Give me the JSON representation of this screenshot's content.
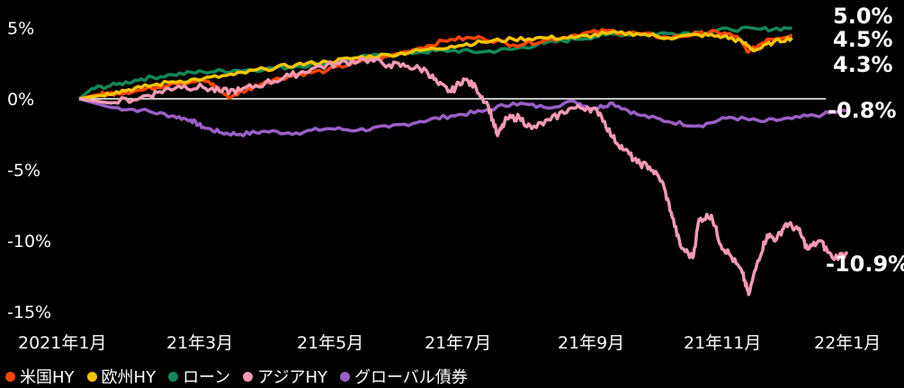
{
  "chart_data": {
    "type": "line",
    "title": "",
    "xlabel": "",
    "ylabel": "",
    "ylim": [
      -15,
      6
    ],
    "y_ticks": [
      5,
      0,
      -5,
      -10,
      -15
    ],
    "y_tick_labels": [
      "5%",
      "0%",
      "-5%",
      "-10%",
      "-15%"
    ],
    "x_tick_labels": [
      "2021年1月",
      "21年3月",
      "21年5月",
      "21年7月",
      "21年9月",
      "21年11月",
      "22年1月"
    ],
    "x_ticks": [
      0,
      2,
      4,
      6,
      8,
      10,
      12
    ],
    "xlim": [
      0,
      12
    ],
    "zero_line": true,
    "series": [
      {
        "name": "米国HY",
        "color": "#ff4500",
        "end_label": "4.5%",
        "points": [
          [
            0,
            0
          ],
          [
            0.3,
            0.3
          ],
          [
            0.6,
            0.4
          ],
          [
            1,
            0.6
          ],
          [
            1.5,
            1.1
          ],
          [
            2,
            1.3
          ],
          [
            2.2,
            0.9
          ],
          [
            2.4,
            0.1
          ],
          [
            2.7,
            0.6
          ],
          [
            3,
            1.2
          ],
          [
            3.5,
            1.7
          ],
          [
            4,
            2.0
          ],
          [
            4.5,
            2.6
          ],
          [
            5,
            3.0
          ],
          [
            5.5,
            3.6
          ],
          [
            6,
            4.2
          ],
          [
            6.5,
            4.3
          ],
          [
            7,
            3.8
          ],
          [
            7.5,
            4.1
          ],
          [
            8,
            4.5
          ],
          [
            8.5,
            4.8
          ],
          [
            9,
            4.6
          ],
          [
            9.5,
            4.3
          ],
          [
            10,
            4.6
          ],
          [
            10.3,
            4.7
          ],
          [
            10.6,
            4.4
          ],
          [
            10.8,
            3.3
          ],
          [
            11.1,
            4.2
          ],
          [
            11.5,
            4.5
          ]
        ]
      },
      {
        "name": "欧州HY",
        "color": "#f5c400",
        "end_label": "4.3%",
        "points": [
          [
            0,
            0
          ],
          [
            0.3,
            0.2
          ],
          [
            0.6,
            0.5
          ],
          [
            1,
            0.8
          ],
          [
            1.5,
            1.2
          ],
          [
            2,
            1.4
          ],
          [
            2.5,
            1.7
          ],
          [
            3,
            2.1
          ],
          [
            3.5,
            2.4
          ],
          [
            4,
            2.6
          ],
          [
            4.5,
            2.9
          ],
          [
            5,
            3.1
          ],
          [
            5.5,
            3.4
          ],
          [
            6,
            3.7
          ],
          [
            6.5,
            4.0
          ],
          [
            7,
            4.2
          ],
          [
            7.5,
            4.3
          ],
          [
            8,
            4.3
          ],
          [
            8.5,
            4.6
          ],
          [
            9,
            4.6
          ],
          [
            9.5,
            4.3
          ],
          [
            10,
            4.5
          ],
          [
            10.4,
            4.4
          ],
          [
            10.7,
            4.0
          ],
          [
            10.9,
            3.4
          ],
          [
            11.2,
            4.0
          ],
          [
            11.5,
            4.3
          ]
        ]
      },
      {
        "name": "ローン",
        "color": "#138857",
        "end_label": "5.0%",
        "points": [
          [
            0,
            0
          ],
          [
            0.2,
            0.7
          ],
          [
            0.6,
            1.0
          ],
          [
            1,
            1.4
          ],
          [
            1.5,
            1.7
          ],
          [
            2,
            1.9
          ],
          [
            2.5,
            2.0
          ],
          [
            3,
            2.1
          ],
          [
            3.5,
            2.3
          ],
          [
            4,
            2.5
          ],
          [
            4.5,
            2.9
          ],
          [
            5,
            3.1
          ],
          [
            5.5,
            3.3
          ],
          [
            6,
            3.4
          ],
          [
            6.5,
            3.3
          ],
          [
            7,
            3.5
          ],
          [
            7.5,
            3.9
          ],
          [
            8,
            4.2
          ],
          [
            8.5,
            4.5
          ],
          [
            9,
            4.6
          ],
          [
            9.5,
            4.6
          ],
          [
            10,
            4.7
          ],
          [
            10.5,
            4.9
          ],
          [
            11,
            4.9
          ],
          [
            11.5,
            5.0
          ]
        ]
      },
      {
        "name": "アジアHY",
        "color": "#f49ab4",
        "end_label": "-10.9%",
        "points": [
          [
            0,
            0
          ],
          [
            0.5,
            -0.3
          ],
          [
            1,
            0.1
          ],
          [
            1.3,
            0.5
          ],
          [
            1.6,
            0.9
          ],
          [
            2,
            0.8
          ],
          [
            2.3,
            0.5
          ],
          [
            2.6,
            0.6
          ],
          [
            3,
            1.1
          ],
          [
            3.4,
            1.6
          ],
          [
            3.8,
            2.2
          ],
          [
            4.2,
            2.5
          ],
          [
            4.6,
            2.8
          ],
          [
            5,
            2.4
          ],
          [
            5.3,
            2.3
          ],
          [
            5.6,
            2.0
          ],
          [
            5.8,
            1.0
          ],
          [
            6,
            0.5
          ],
          [
            6.2,
            1.4
          ],
          [
            6.4,
            0.8
          ],
          [
            6.6,
            -0.5
          ],
          [
            6.75,
            -2.6
          ],
          [
            6.9,
            -1.4
          ],
          [
            7.1,
            -1.3
          ],
          [
            7.3,
            -2.1
          ],
          [
            7.6,
            -1.5
          ],
          [
            7.9,
            -0.7
          ],
          [
            8.2,
            -0.6
          ],
          [
            8.4,
            -1.0
          ],
          [
            8.6,
            -2.7
          ],
          [
            8.8,
            -3.6
          ],
          [
            9,
            -4.5
          ],
          [
            9.2,
            -4.8
          ],
          [
            9.4,
            -5.8
          ],
          [
            9.55,
            -8.0
          ],
          [
            9.7,
            -10.4
          ],
          [
            9.9,
            -11.2
          ],
          [
            10.0,
            -8.5
          ],
          [
            10.2,
            -8.2
          ],
          [
            10.35,
            -10.3
          ],
          [
            10.5,
            -11.0
          ],
          [
            10.7,
            -12.3
          ],
          [
            10.8,
            -13.8
          ],
          [
            10.95,
            -11.4
          ],
          [
            11.1,
            -9.6
          ],
          [
            11.25,
            -9.9
          ],
          [
            11.4,
            -8.8
          ],
          [
            11.6,
            -9.2
          ],
          [
            11.75,
            -10.6
          ],
          [
            11.95,
            -10.0
          ],
          [
            12.15,
            -11.2
          ],
          [
            12.4,
            -10.9
          ]
        ]
      },
      {
        "name": "グローバル債券",
        "color": "#9b5fc6",
        "end_label": "-0.8%",
        "points": [
          [
            0,
            0
          ],
          [
            0.5,
            -0.6
          ],
          [
            1,
            -0.8
          ],
          [
            1.5,
            -1.2
          ],
          [
            1.8,
            -1.5
          ],
          [
            2,
            -2.0
          ],
          [
            2.3,
            -2.4
          ],
          [
            2.6,
            -2.5
          ],
          [
            3,
            -2.3
          ],
          [
            3.5,
            -2.4
          ],
          [
            4,
            -2.1
          ],
          [
            4.5,
            -2.2
          ],
          [
            5,
            -2.0
          ],
          [
            5.5,
            -1.6
          ],
          [
            6,
            -1.2
          ],
          [
            6.5,
            -0.9
          ],
          [
            7,
            -0.3
          ],
          [
            7.5,
            -0.6
          ],
          [
            8,
            -0.2
          ],
          [
            8.3,
            -0.7
          ],
          [
            8.6,
            -0.3
          ],
          [
            9,
            -1.1
          ],
          [
            9.5,
            -1.6
          ],
          [
            10,
            -1.9
          ],
          [
            10.5,
            -1.3
          ],
          [
            11,
            -1.6
          ],
          [
            11.5,
            -1.4
          ],
          [
            12,
            -1.1
          ],
          [
            12.4,
            -0.8
          ]
        ]
      }
    ],
    "end_label_order": [
      "5.0%",
      "4.5%",
      "4.3%",
      "-0.8%",
      "-10.9%"
    ]
  },
  "legend": [
    {
      "label": "米国HY",
      "color": "#ff4500"
    },
    {
      "label": "欧州HY",
      "color": "#f5c400"
    },
    {
      "label": "ローン",
      "color": "#138857"
    },
    {
      "label": "アジアHY",
      "color": "#f49ab4"
    },
    {
      "label": "グローバル債券",
      "color": "#9b5fc6"
    }
  ]
}
